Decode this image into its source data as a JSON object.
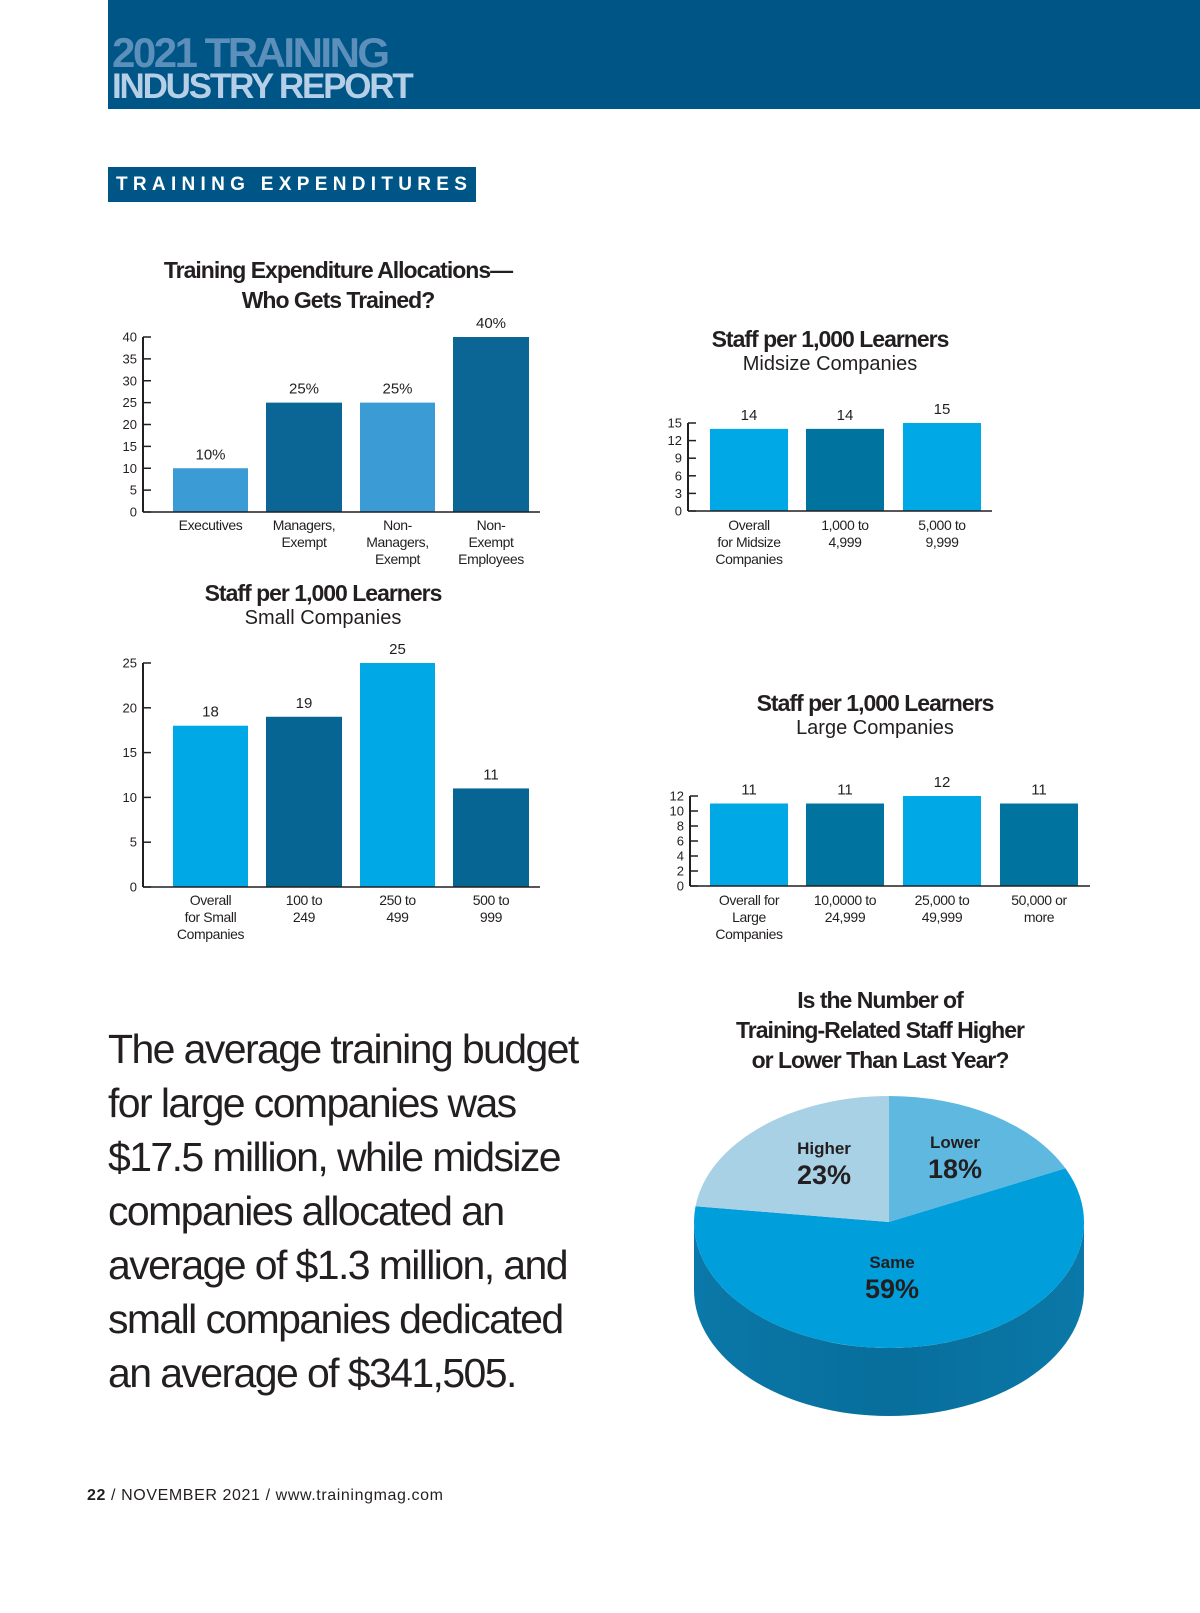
{
  "header": {
    "title_line1": "2021 TRAINING",
    "title_line2": "INDUSTRY REPORT",
    "brand_color": "#005587"
  },
  "section_label": "TRAINING EXPENDITURES",
  "body_text": "The average training budget for large companies was $17.5 million, while midsize companies allocated an average of $1.3 million, and small companies dedicated an average of $341,505.",
  "footer": {
    "page_number": "22",
    "issue": " / NOVEMBER 2021 / www.trainingmag.com"
  },
  "chart_data": [
    {
      "id": "allocations",
      "type": "bar",
      "title_line1": "Training Expenditure Allocations—",
      "title_line2": "Who Gets Trained?",
      "categories": [
        [
          "Executives"
        ],
        [
          "Managers,",
          "Exempt"
        ],
        [
          "Non-",
          "Managers,",
          "Exempt"
        ],
        [
          "Non-",
          "Exempt",
          "Employees"
        ]
      ],
      "values": [
        10,
        25,
        25,
        40
      ],
      "value_labels": [
        "10%",
        "25%",
        "25%",
        "40%"
      ],
      "colors": [
        "#3a9bd5",
        "#0b6696",
        "#3a9bd5",
        "#0b6696"
      ],
      "yticks": [
        0,
        5,
        10,
        15,
        20,
        25,
        30,
        35,
        40
      ],
      "ylim": [
        0,
        40
      ],
      "xlabel": "",
      "ylabel": "",
      "grid": false
    },
    {
      "id": "midsize",
      "type": "bar",
      "title_line1": "Staff per 1,000 Learners",
      "subtitle": "Midsize Companies",
      "categories": [
        [
          "Overall",
          "for Midsize",
          "Companies"
        ],
        [
          "1,000 to",
          "4,999"
        ],
        [
          "5,000 to",
          "9,999"
        ]
      ],
      "values": [
        14,
        14,
        15
      ],
      "value_labels": [
        "14",
        "14",
        "15"
      ],
      "colors": [
        "#00a9e6",
        "#00749f",
        "#00a9e6"
      ],
      "yticks": [
        0,
        3,
        6,
        9,
        12,
        15
      ],
      "ylim": [
        0,
        15
      ],
      "xlabel": "",
      "ylabel": "",
      "grid": false
    },
    {
      "id": "small",
      "type": "bar",
      "title_line1": "Staff per 1,000 Learners",
      "subtitle": "Small Companies",
      "categories": [
        [
          "Overall",
          "for Small",
          "Companies"
        ],
        [
          "100 to",
          "249"
        ],
        [
          "250 to",
          "499"
        ],
        [
          "500 to",
          "999"
        ]
      ],
      "values": [
        18,
        19,
        25,
        11
      ],
      "value_labels": [
        "18",
        "19",
        "25",
        "11"
      ],
      "colors": [
        "#00a9e6",
        "#066593",
        "#00a9e6",
        "#066593"
      ],
      "yticks": [
        0,
        5,
        10,
        15,
        20,
        25
      ],
      "ylim": [
        0,
        25
      ],
      "xlabel": "",
      "ylabel": "",
      "grid": false
    },
    {
      "id": "large",
      "type": "bar",
      "title_line1": "Staff per 1,000 Learners",
      "subtitle": "Large Companies",
      "categories": [
        [
          "Overall for",
          "Large",
          "Companies"
        ],
        [
          "10,0000 to",
          "24,999"
        ],
        [
          "25,000 to",
          "49,999"
        ],
        [
          "50,000 or",
          "more"
        ]
      ],
      "values": [
        11,
        11,
        12,
        11
      ],
      "value_labels": [
        "11",
        "11",
        "12",
        "11"
      ],
      "colors": [
        "#00a9e6",
        "#00749f",
        "#00a9e6",
        "#00749f"
      ],
      "yticks": [
        0,
        2,
        4,
        6,
        8,
        10,
        12
      ],
      "ylim": [
        0,
        12
      ],
      "xlabel": "",
      "ylabel": "",
      "grid": false
    },
    {
      "id": "staff-change",
      "type": "pie",
      "title_lines": [
        "Is the Number of",
        "Training-Related Staff Higher",
        "or Lower Than Last Year?"
      ],
      "slices": [
        {
          "label": "Lower",
          "value": 18,
          "value_label": "18%",
          "color": "#5fb8e0"
        },
        {
          "label": "Same",
          "value": 59,
          "value_label": "59%",
          "color": "#009fdb"
        },
        {
          "label": "Higher",
          "value": 23,
          "value_label": "23%",
          "color": "#a9d1e6"
        }
      ],
      "side_color": "#0a78a8",
      "legend": "none"
    }
  ]
}
